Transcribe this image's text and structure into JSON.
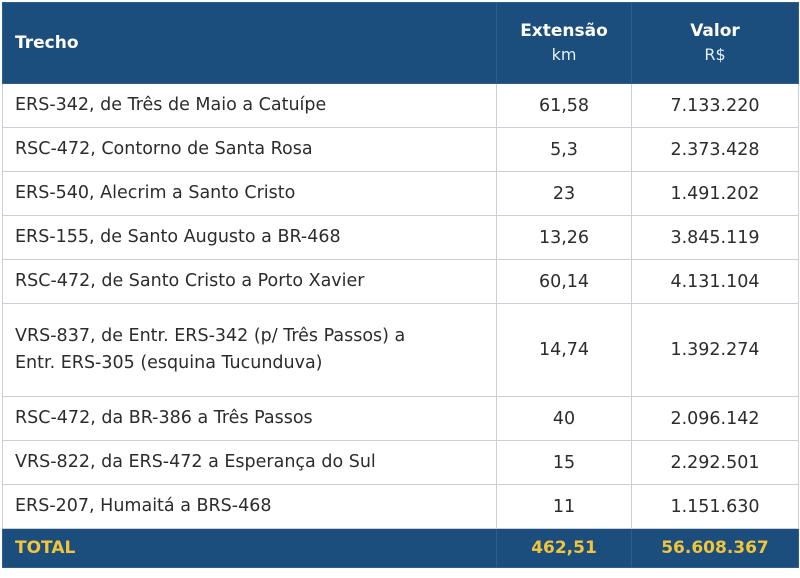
{
  "headers": {
    "trecho": "Trecho",
    "extensao": "Extensão",
    "extensao_unit": "km",
    "valor": "Valor",
    "valor_unit": "R$"
  },
  "rows": [
    {
      "trecho": "ERS-342, de Três de Maio a Catuípe",
      "extensao": "61,58",
      "valor": "7.133.220"
    },
    {
      "trecho": "RSC-472, Contorno de Santa Rosa",
      "extensao": "5,3",
      "valor": "2.373.428"
    },
    {
      "trecho": "ERS-540, Alecrim a Santo Cristo",
      "extensao": "23",
      "valor": "1.491.202"
    },
    {
      "trecho": "ERS-155, de Santo Augusto a BR-468",
      "extensao": "13,26",
      "valor": "3.845.119"
    },
    {
      "trecho": "RSC-472, de Santo Cristo a Porto Xavier",
      "extensao": "60,14",
      "valor": "4.131.104"
    },
    {
      "trecho_line1": "VRS-837, de Entr. ERS-342 (p/ Três Passos) a",
      "trecho_line2": "Entr. ERS-305 (esquina Tucunduva)",
      "extensao": "14,74",
      "valor": "1.392.274"
    },
    {
      "trecho": "RSC-472, da BR-386 a Três Passos",
      "extensao": "40",
      "valor": "2.096.142"
    },
    {
      "trecho": "VRS-822, da ERS-472 a Esperança do Sul",
      "extensao": "15",
      "valor": "2.292.501"
    },
    {
      "trecho": "ERS-207, Humaitá a BRS-468",
      "extensao": "11",
      "valor": "1.151.630"
    }
  ],
  "total": {
    "label": "TOTAL",
    "extensao": "462,51",
    "valor": "56.608.367"
  },
  "colors": {
    "header_bg": "#1c4e7d",
    "header_text": "#ffffff",
    "total_text": "#f2c43a",
    "body_text": "#2c2c2c"
  }
}
